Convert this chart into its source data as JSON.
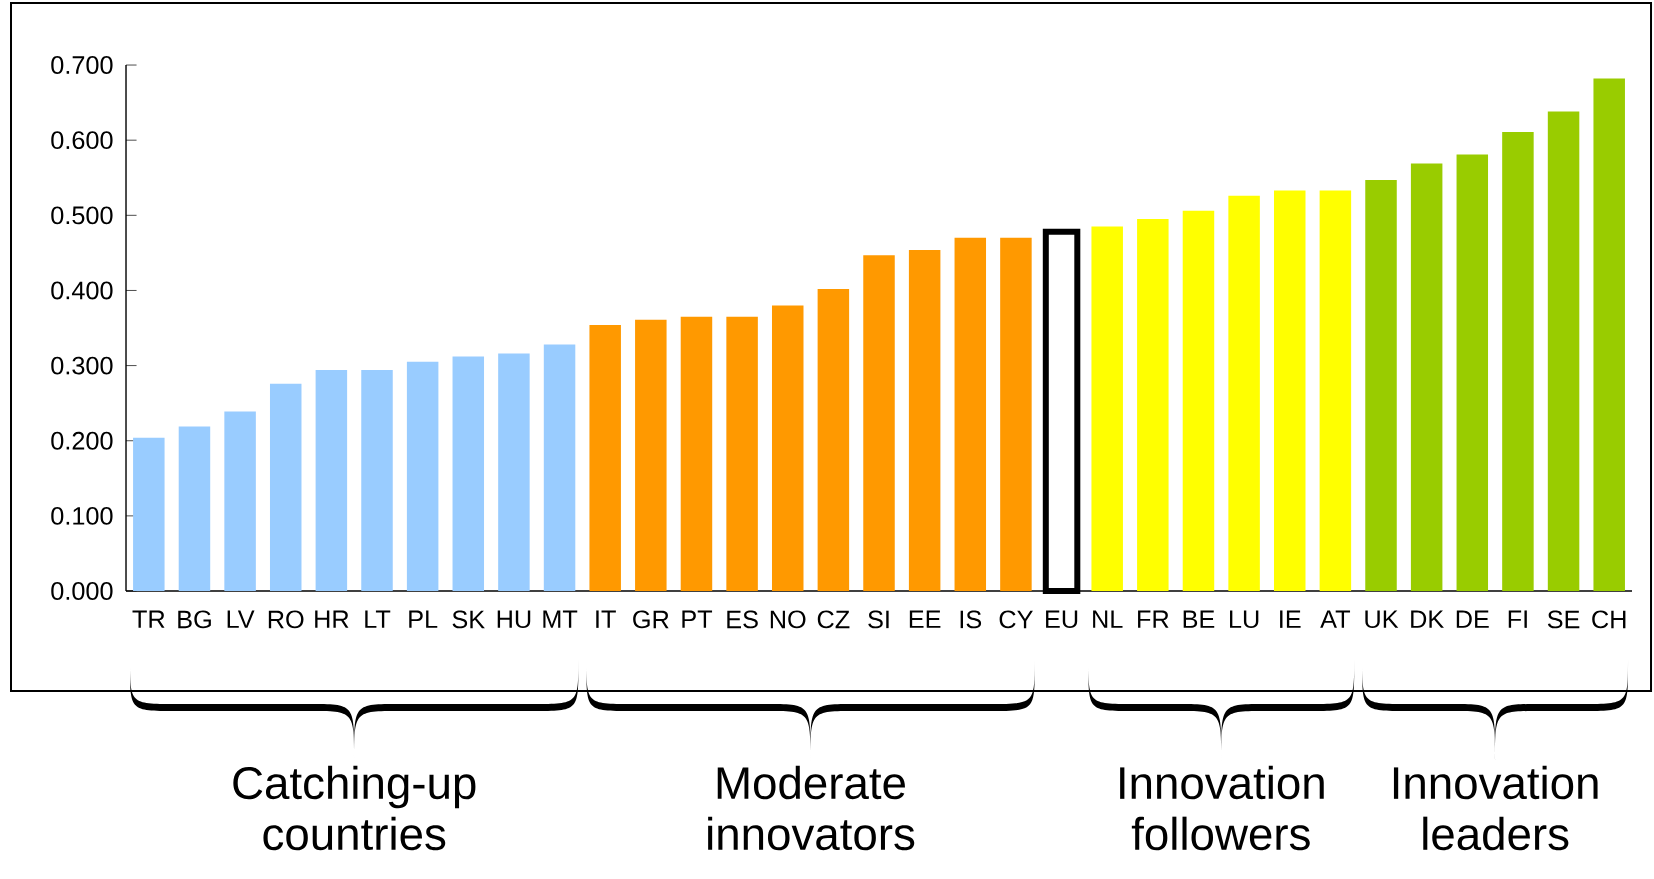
{
  "chart_data": {
    "type": "bar",
    "categories": [
      "TR",
      "BG",
      "LV",
      "RO",
      "HR",
      "LT",
      "PL",
      "SK",
      "HU",
      "MT",
      "IT",
      "GR",
      "PT",
      "ES",
      "NO",
      "CZ",
      "SI",
      "EE",
      "IS",
      "CY",
      "EU",
      "NL",
      "FR",
      "BE",
      "LU",
      "IE",
      "AT",
      "UK",
      "DK",
      "DE",
      "FI",
      "SE",
      "CH"
    ],
    "values": [
      0.204,
      0.219,
      0.239,
      0.276,
      0.294,
      0.294,
      0.305,
      0.312,
      0.316,
      0.328,
      0.354,
      0.361,
      0.365,
      0.365,
      0.38,
      0.402,
      0.447,
      0.454,
      0.47,
      0.47,
      0.478,
      0.485,
      0.495,
      0.506,
      0.526,
      0.533,
      0.533,
      0.547,
      0.569,
      0.581,
      0.611,
      0.638,
      0.682
    ],
    "colors": [
      "#99ccff",
      "#99ccff",
      "#99ccff",
      "#99ccff",
      "#99ccff",
      "#99ccff",
      "#99ccff",
      "#99ccff",
      "#99ccff",
      "#99ccff",
      "#ff9900",
      "#ff9900",
      "#ff9900",
      "#ff9900",
      "#ff9900",
      "#ff9900",
      "#ff9900",
      "#ff9900",
      "#ff9900",
      "#ff9900",
      "#ffffff",
      "#ffff00",
      "#ffff00",
      "#ffff00",
      "#ffff00",
      "#ffff00",
      "#ffff00",
      "#99cc00",
      "#99cc00",
      "#99cc00",
      "#99cc00",
      "#99cc00",
      "#99cc00"
    ],
    "ylim": [
      0,
      0.7
    ],
    "yticks": [
      {
        "value": 0,
        "label": "0.000"
      },
      {
        "value": 0.1,
        "label": "0.100"
      },
      {
        "value": 0.2,
        "label": "0.200"
      },
      {
        "value": 0.3,
        "label": "0.300"
      },
      {
        "value": 0.4,
        "label": "0.400"
      },
      {
        "value": 0.5,
        "label": "0.500"
      },
      {
        "value": 0.6,
        "label": "0.600"
      },
      {
        "value": 0.7,
        "label": "0.700"
      }
    ],
    "annotations": [
      "Catching-up countries",
      "Moderate innovators",
      "Innovation followers",
      "Innovation leaders"
    ],
    "grid": false
  }
}
